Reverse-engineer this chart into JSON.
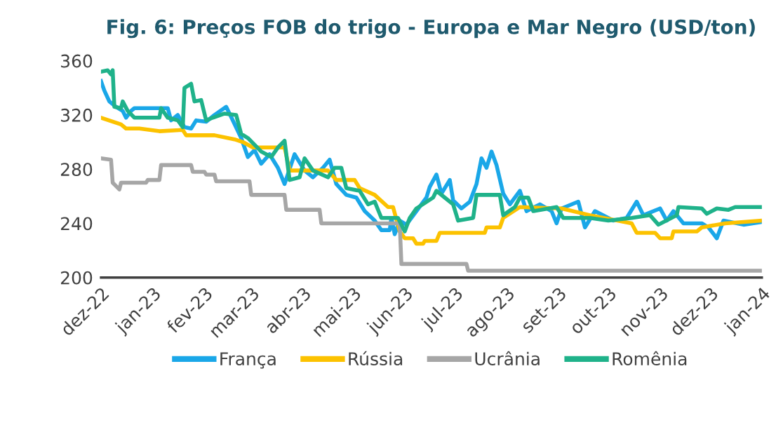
{
  "chart_data": {
    "type": "line",
    "title": "Fig. 6: Preços FOB do trigo - Europa e Mar Negro (USD/ton)",
    "xlim": [
      "2022-12-01",
      "2024-01-01"
    ],
    "xticks": [
      {
        "value": "2022-12-01",
        "label": "dez-22"
      },
      {
        "value": "2023-01-01",
        "label": "jan-23"
      },
      {
        "value": "2023-02-01",
        "label": "fev-23"
      },
      {
        "value": "2023-03-01",
        "label": "mar-23"
      },
      {
        "value": "2023-04-01",
        "label": "abr-23"
      },
      {
        "value": "2023-05-01",
        "label": "mai-23"
      },
      {
        "value": "2023-06-01",
        "label": "jun-23"
      },
      {
        "value": "2023-07-01",
        "label": "jul-23"
      },
      {
        "value": "2023-08-01",
        "label": "ago-23"
      },
      {
        "value": "2023-09-01",
        "label": "set-23"
      },
      {
        "value": "2023-10-01",
        "label": "out-23"
      },
      {
        "value": "2023-11-01",
        "label": "nov-23"
      },
      {
        "value": "2023-12-01",
        "label": "dez-23"
      },
      {
        "value": "2024-01-01",
        "label": "jan-24"
      }
    ],
    "ylim": [
      200,
      360
    ],
    "yticks": [
      200,
      240,
      280,
      320,
      360
    ],
    "grid": false,
    "legend": "bottom",
    "marker": "none",
    "line_style": "solid",
    "series": [
      {
        "name": "França",
        "color": "#1aa7e8",
        "x": [
          "2022-12-01",
          "2022-12-03",
          "2022-12-06",
          "2022-12-10",
          "2022-12-14",
          "2022-12-16",
          "2022-12-19",
          "2022-12-21",
          "2023-01-10",
          "2023-01-12",
          "2023-01-16",
          "2023-01-20",
          "2023-01-24",
          "2023-01-27",
          "2023-02-02",
          "2023-02-07",
          "2023-02-14",
          "2023-02-18",
          "2023-02-23",
          "2023-02-27",
          "2023-03-03",
          "2023-03-07",
          "2023-03-12",
          "2023-03-17",
          "2023-03-21",
          "2023-03-27",
          "2023-04-02",
          "2023-04-07",
          "2023-04-13",
          "2023-04-17",
          "2023-04-21",
          "2023-04-27",
          "2023-05-03",
          "2023-05-08",
          "2023-05-14",
          "2023-05-18",
          "2023-05-23",
          "2023-05-24",
          "2023-05-26",
          "2023-05-29",
          "2023-06-02",
          "2023-06-08",
          "2023-06-14",
          "2023-06-16",
          "2023-06-20",
          "2023-06-23",
          "2023-06-28",
          "2023-06-30",
          "2023-07-05",
          "2023-07-10",
          "2023-07-14",
          "2023-07-17",
          "2023-07-20",
          "2023-07-23",
          "2023-07-26",
          "2023-07-30",
          "2023-08-03",
          "2023-08-09",
          "2023-08-13",
          "2023-08-21",
          "2023-08-28",
          "2023-08-31",
          "2023-09-03",
          "2023-09-13",
          "2023-09-17",
          "2023-09-23",
          "2023-10-04",
          "2023-10-12",
          "2023-10-18",
          "2023-10-22",
          "2023-11-01",
          "2023-11-05",
          "2023-11-09",
          "2023-11-15",
          "2023-11-26",
          "2023-11-30",
          "2023-12-05",
          "2023-12-09",
          "2023-12-21",
          "2024-01-01"
        ],
        "values": [
          345,
          338,
          330,
          326,
          323,
          318,
          323,
          325,
          325,
          316,
          320,
          311,
          310,
          316,
          315,
          320,
          326,
          316,
          303,
          289,
          294,
          284,
          291,
          281,
          269,
          291,
          279,
          274,
          281,
          287,
          269,
          261,
          259,
          249,
          242,
          235,
          235,
          244,
          232,
          242,
          239,
          249,
          259,
          267,
          276,
          262,
          272,
          257,
          251,
          256,
          269,
          288,
          281,
          293,
          283,
          262,
          254,
          264,
          249,
          254,
          249,
          240,
          251,
          256,
          237,
          249,
          242,
          244,
          256,
          246,
          251,
          242,
          249,
          240,
          240,
          237,
          229,
          242,
          239,
          241
        ]
      },
      {
        "name": "Rússia",
        "color": "#fcc200",
        "x": [
          "2022-12-01",
          "2022-12-13",
          "2022-12-16",
          "2022-12-24",
          "2023-01-05",
          "2023-01-19",
          "2023-01-21",
          "2023-02-07",
          "2023-02-19",
          "2023-02-24",
          "2023-03-02",
          "2023-03-21",
          "2023-03-24",
          "2023-04-16",
          "2023-04-21",
          "2023-05-02",
          "2023-05-05",
          "2023-05-14",
          "2023-05-22",
          "2023-05-25",
          "2023-05-29",
          "2023-06-01",
          "2023-06-06",
          "2023-06-08",
          "2023-06-12",
          "2023-06-13",
          "2023-06-20",
          "2023-06-22",
          "2023-07-19",
          "2023-07-20",
          "2023-07-28",
          "2023-07-30",
          "2023-08-09",
          "2023-09-03",
          "2023-09-20",
          "2023-10-15",
          "2023-10-18",
          "2023-10-29",
          "2023-11-01",
          "2023-11-08",
          "2023-11-09",
          "2023-11-23",
          "2023-11-26",
          "2023-12-10",
          "2024-01-01"
        ],
        "values": [
          318,
          313,
          310,
          310,
          308,
          309,
          305,
          305,
          302,
          300,
          296,
          296,
          279,
          279,
          272,
          272,
          266,
          261,
          252,
          252,
          234,
          229,
          229,
          225,
          225,
          227,
          227,
          233,
          233,
          237,
          237,
          244,
          252,
          251,
          246,
          240,
          233,
          233,
          229,
          229,
          234,
          234,
          237,
          240,
          242
        ]
      },
      {
        "name": "Ucrânia",
        "color": "#a6a6a6",
        "x": [
          "2022-12-01",
          "2022-12-07",
          "2022-12-08",
          "2022-12-12",
          "2022-12-13",
          "2022-12-28",
          "2022-12-29",
          "2023-01-05",
          "2023-01-06",
          "2023-01-24",
          "2023-01-25",
          "2023-02-01",
          "2023-02-02",
          "2023-02-07",
          "2023-02-08",
          "2023-02-28",
          "2023-03-01",
          "2023-03-21",
          "2023-03-22",
          "2023-04-11",
          "2023-04-12",
          "2023-05-29",
          "2023-05-30",
          "2023-07-08",
          "2023-07-09",
          "2024-01-01"
        ],
        "values": [
          288,
          287,
          270,
          265,
          270,
          270,
          272,
          272,
          283,
          283,
          278,
          278,
          276,
          276,
          271,
          271,
          261,
          261,
          250,
          250,
          240,
          240,
          210,
          210,
          205,
          205
        ]
      },
      {
        "name": "Romênia",
        "color": "#1fb28a",
        "x": [
          "2022-12-01",
          "2022-12-05",
          "2022-12-07",
          "2022-12-08",
          "2022-12-09",
          "2022-12-13",
          "2022-12-14",
          "2022-12-17",
          "2022-12-21",
          "2023-01-05",
          "2023-01-06",
          "2023-01-10",
          "2023-01-16",
          "2023-01-19",
          "2023-01-20",
          "2023-01-24",
          "2023-01-26",
          "2023-01-30",
          "2023-02-02",
          "2023-02-06",
          "2023-02-13",
          "2023-02-20",
          "2023-02-23",
          "2023-02-27",
          "2023-03-03",
          "2023-03-07",
          "2023-03-13",
          "2023-03-17",
          "2023-03-21",
          "2023-03-24",
          "2023-03-30",
          "2023-04-02",
          "2023-04-07",
          "2023-04-16",
          "2023-04-20",
          "2023-04-24",
          "2023-04-27",
          "2023-05-05",
          "2023-05-10",
          "2023-05-14",
          "2023-05-18",
          "2023-05-28",
          "2023-06-01",
          "2023-06-04",
          "2023-06-08",
          "2023-06-18",
          "2023-06-20",
          "2023-06-25",
          "2023-06-30",
          "2023-07-03",
          "2023-07-12",
          "2023-07-14",
          "2023-07-28",
          "2023-07-30",
          "2023-08-06",
          "2023-08-09",
          "2023-08-14",
          "2023-08-17",
          "2023-08-31",
          "2023-09-04",
          "2023-09-20",
          "2023-10-01",
          "2023-10-15",
          "2023-10-26",
          "2023-10-31",
          "2023-11-11",
          "2023-11-12",
          "2023-11-26",
          "2023-11-29",
          "2023-12-05",
          "2023-12-12",
          "2023-12-16",
          "2024-01-01"
        ],
        "values": [
          352,
          353,
          350,
          353,
          326,
          325,
          330,
          323,
          318,
          318,
          325,
          318,
          316,
          311,
          340,
          343,
          330,
          331,
          316,
          318,
          321,
          320,
          306,
          303,
          298,
          293,
          289,
          296,
          301,
          272,
          274,
          288,
          279,
          274,
          281,
          281,
          266,
          264,
          254,
          256,
          244,
          244,
          234,
          244,
          251,
          259,
          264,
          259,
          254,
          242,
          244,
          261,
          261,
          246,
          252,
          259,
          259,
          249,
          252,
          244,
          244,
          242,
          244,
          246,
          239,
          246,
          252,
          251,
          247,
          251,
          250,
          252,
          252
        ]
      }
    ]
  }
}
